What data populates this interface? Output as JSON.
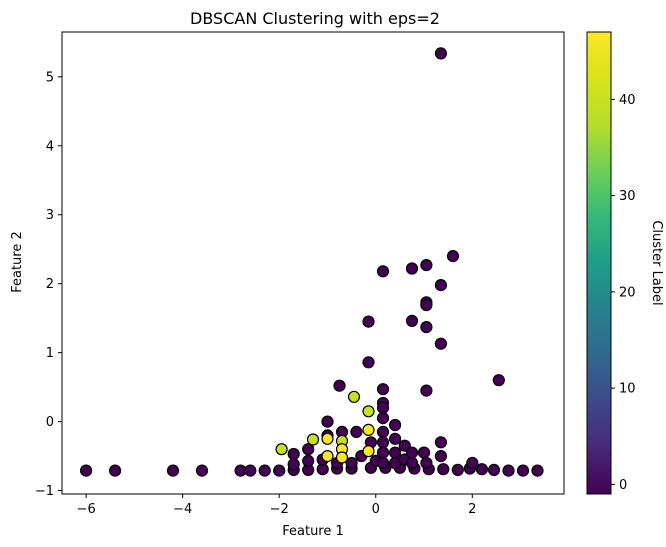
{
  "chart_data": {
    "type": "scatter",
    "title": "DBSCAN Clustering with eps=2",
    "xlabel": "Feature 1",
    "ylabel": "Feature 2",
    "xlim": [
      -6.5,
      3.9
    ],
    "ylim": [
      -1.05,
      5.65
    ],
    "xticks": [
      -6,
      -4,
      -2,
      0,
      2
    ],
    "yticks": [
      -1,
      0,
      1,
      2,
      3,
      4,
      5
    ],
    "grid": false,
    "colormap": "viridis",
    "marker_edge_color": "#000000",
    "colorbar": {
      "label": "Cluster Label",
      "range": [
        -1,
        47
      ],
      "ticks": [
        0,
        10,
        20,
        30,
        40
      ]
    },
    "series": [
      {
        "label_value": -1,
        "points": [
          [
            -6.0,
            -0.71
          ],
          [
            -5.4,
            -0.71
          ],
          [
            -4.2,
            -0.71
          ],
          [
            -3.6,
            -0.71
          ],
          [
            -2.8,
            -0.71
          ],
          [
            -2.6,
            -0.71
          ],
          [
            -2.3,
            -0.71
          ],
          [
            -2.0,
            -0.71
          ],
          [
            -1.7,
            -0.7
          ],
          [
            -1.4,
            -0.7
          ],
          [
            -1.1,
            -0.69
          ],
          [
            -0.8,
            -0.68
          ],
          [
            -0.5,
            -0.68
          ],
          [
            -0.1,
            -0.67
          ],
          [
            0.2,
            -0.67
          ],
          [
            0.5,
            -0.67
          ],
          [
            0.8,
            -0.68
          ],
          [
            1.1,
            -0.69
          ],
          [
            1.4,
            -0.69
          ],
          [
            1.7,
            -0.7
          ],
          [
            1.95,
            -0.68
          ],
          [
            2.2,
            -0.69
          ],
          [
            2.45,
            -0.7
          ],
          [
            2.75,
            -0.71
          ],
          [
            3.05,
            -0.71
          ],
          [
            3.35,
            -0.71
          ],
          [
            -1.7,
            -0.62
          ],
          [
            -1.7,
            -0.47
          ],
          [
            -1.4,
            -0.57
          ],
          [
            -1.4,
            -0.4
          ],
          [
            -1.1,
            -0.55
          ],
          [
            -1.0,
            0.0
          ],
          [
            -1.0,
            -0.2
          ],
          [
            -0.8,
            -0.6
          ],
          [
            -0.7,
            -0.15
          ],
          [
            -0.5,
            -0.6
          ],
          [
            -0.4,
            -0.15
          ],
          [
            -0.3,
            -0.5
          ],
          [
            -0.1,
            -0.3
          ],
          [
            0.0,
            -0.57
          ],
          [
            0.15,
            0.47
          ],
          [
            0.15,
            0.27
          ],
          [
            0.15,
            0.2
          ],
          [
            0.15,
            0.05
          ],
          [
            0.15,
            -0.15
          ],
          [
            0.15,
            -0.3
          ],
          [
            0.15,
            -0.45
          ],
          [
            0.15,
            -0.6
          ],
          [
            0.4,
            -0.05
          ],
          [
            0.4,
            -0.25
          ],
          [
            0.4,
            -0.45
          ],
          [
            0.4,
            -0.6
          ],
          [
            0.6,
            -0.35
          ],
          [
            0.6,
            -0.55
          ],
          [
            0.75,
            -0.45
          ],
          [
            0.75,
            -0.6
          ],
          [
            1.0,
            -0.45
          ],
          [
            1.05,
            -0.6
          ],
          [
            1.35,
            -0.3
          ],
          [
            1.35,
            -0.5
          ],
          [
            2.0,
            -0.6
          ],
          [
            -0.15,
            0.86
          ],
          [
            -0.15,
            1.45
          ],
          [
            -0.75,
            0.52
          ],
          [
            0.15,
            2.18
          ],
          [
            0.75,
            2.22
          ],
          [
            0.75,
            1.46
          ],
          [
            1.05,
            2.27
          ],
          [
            1.05,
            1.73
          ],
          [
            1.05,
            1.69
          ],
          [
            1.05,
            1.37
          ],
          [
            1.35,
            1.98
          ],
          [
            1.35,
            1.13
          ],
          [
            1.6,
            2.4
          ],
          [
            2.55,
            0.6
          ],
          [
            1.05,
            0.45
          ],
          [
            1.35,
            5.34
          ]
        ]
      },
      {
        "label_value": 40,
        "points": [
          [
            -1.95,
            -0.4
          ],
          [
            -1.3,
            -0.26
          ],
          [
            -0.7,
            -0.28
          ],
          [
            -0.45,
            0.36
          ],
          [
            -0.15,
            0.15
          ]
        ]
      },
      {
        "label_value": 47,
        "points": [
          [
            -1.0,
            -0.25
          ],
          [
            -1.0,
            -0.5
          ],
          [
            -0.7,
            -0.4
          ],
          [
            -0.7,
            -0.52
          ],
          [
            -0.15,
            -0.12
          ],
          [
            -0.15,
            -0.43
          ]
        ]
      }
    ]
  }
}
